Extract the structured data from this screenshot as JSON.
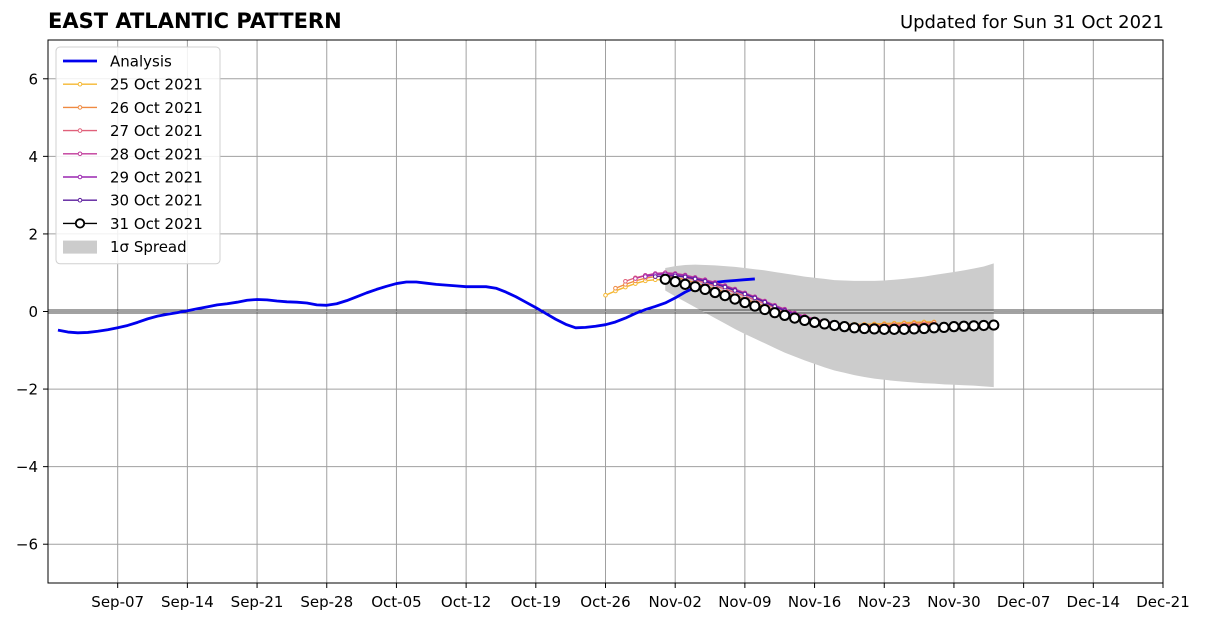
{
  "title": "EAST ATLANTIC PATTERN",
  "updated": "Updated for Sun 31 Oct 2021",
  "chart_data": {
    "type": "line",
    "title": "EAST ATLANTIC PATTERN",
    "x_start": "2021-09-01",
    "xlim": [
      "2021-08-31",
      "2021-12-21"
    ],
    "ylim": [
      -7,
      7
    ],
    "yticks": [
      -6,
      -4,
      -2,
      0,
      2,
      4,
      6
    ],
    "ytick_labels": [
      "−6",
      "−4",
      "−2",
      "0",
      "2",
      "4",
      "6"
    ],
    "xticks": [
      "2021-09-07",
      "2021-09-14",
      "2021-09-21",
      "2021-09-28",
      "2021-10-05",
      "2021-10-12",
      "2021-10-19",
      "2021-10-26",
      "2021-11-02",
      "2021-11-09",
      "2021-11-16",
      "2021-11-23",
      "2021-11-30",
      "2021-12-07",
      "2021-12-14",
      "2021-12-21"
    ],
    "xtick_labels": [
      "Sep-07",
      "Sep-14",
      "Sep-21",
      "Sep-28",
      "Oct-05",
      "Oct-12",
      "Oct-19",
      "Oct-26",
      "Nov-02",
      "Nov-09",
      "Nov-16",
      "Nov-23",
      "Nov-30",
      "Dec-07",
      "Dec-14",
      "Dec-21"
    ],
    "grid": true,
    "legend_position": "top-left",
    "zero_line": true,
    "analysis": {
      "name": "Analysis",
      "color": "#0000ee",
      "start": "2021-09-01",
      "values": [
        -0.48,
        -0.53,
        -0.55,
        -0.54,
        -0.51,
        -0.47,
        -0.42,
        -0.36,
        -0.28,
        -0.19,
        -0.12,
        -0.07,
        -0.03,
        0.02,
        0.07,
        0.12,
        0.17,
        0.2,
        0.24,
        0.29,
        0.31,
        0.3,
        0.27,
        0.25,
        0.24,
        0.22,
        0.17,
        0.16,
        0.2,
        0.28,
        0.38,
        0.48,
        0.57,
        0.65,
        0.72,
        0.76,
        0.76,
        0.73,
        0.7,
        0.68,
        0.66,
        0.64,
        0.64,
        0.64,
        0.6,
        0.5,
        0.38,
        0.24,
        0.1,
        -0.05,
        -0.2,
        -0.33,
        -0.42,
        -0.41,
        -0.38,
        -0.34,
        -0.27,
        -0.17,
        -0.05,
        0.05,
        0.13,
        0.22,
        0.35,
        0.5,
        0.62,
        0.7,
        0.75,
        0.78,
        0.8,
        0.82,
        0.84
      ]
    },
    "forecasts": [
      {
        "name": "25 Oct 2021",
        "color": "#f5b731",
        "start": "2021-10-26",
        "values": [
          0.42,
          0.53,
          0.63,
          0.72,
          0.79,
          0.82,
          0.82,
          0.78,
          0.71,
          0.63,
          0.55,
          0.47,
          0.39,
          0.31,
          0.22,
          0.13,
          0.04,
          -0.04,
          -0.11,
          -0.17,
          -0.22,
          -0.26,
          -0.29,
          -0.31,
          -0.32,
          -0.33,
          -0.33,
          -0.32,
          -0.31,
          -0.3,
          -0.29,
          -0.28,
          -0.27,
          -0.27
        ]
      },
      {
        "name": "26 Oct 2021",
        "color": "#ef8a42",
        "start": "2021-10-27",
        "values": [
          0.6,
          0.7,
          0.79,
          0.86,
          0.9,
          0.91,
          0.88,
          0.82,
          0.74,
          0.66,
          0.58,
          0.5,
          0.41,
          0.32,
          0.23,
          0.13,
          0.04,
          -0.04,
          -0.12,
          -0.18,
          -0.23,
          -0.27,
          -0.3,
          -0.32,
          -0.34,
          -0.34,
          -0.34,
          -0.33,
          -0.32,
          -0.31,
          -0.3,
          -0.29,
          -0.28
        ]
      },
      {
        "name": "27 Oct 2021",
        "color": "#e0607a",
        "start": "2021-10-28",
        "values": [
          0.78,
          0.87,
          0.93,
          0.96,
          0.96,
          0.93,
          0.88,
          0.81,
          0.74,
          0.66,
          0.58,
          0.49,
          0.4,
          0.3,
          0.2,
          0.1,
          0.01,
          -0.07,
          -0.15,
          -0.21,
          -0.26,
          -0.3,
          -0.33,
          -0.35,
          -0.36,
          -0.37,
          -0.37,
          -0.36,
          -0.35,
          -0.34,
          -0.33,
          -0.32
        ]
      },
      {
        "name": "28 Oct 2021",
        "color": "#c0399a",
        "start": "2021-10-29",
        "values": [
          0.85,
          0.93,
          0.98,
          1.0,
          0.98,
          0.94,
          0.88,
          0.82,
          0.75,
          0.67,
          0.58,
          0.48,
          0.38,
          0.27,
          0.16,
          0.06,
          -0.04,
          -0.12,
          -0.19,
          -0.25,
          -0.3,
          -0.34,
          -0.37,
          -0.39,
          -0.4,
          -0.4,
          -0.4,
          -0.39,
          -0.38,
          -0.37,
          -0.36
        ]
      },
      {
        "name": "29 Oct 2021",
        "color": "#9a27b0",
        "start": "2021-10-30",
        "values": [
          0.9,
          0.95,
          0.97,
          0.96,
          0.92,
          0.86,
          0.8,
          0.73,
          0.65,
          0.56,
          0.46,
          0.36,
          0.25,
          0.14,
          0.04,
          -0.06,
          -0.15,
          -0.22,
          -0.28,
          -0.33,
          -0.37,
          -0.4,
          -0.42,
          -0.43,
          -0.43,
          -0.43,
          -0.42,
          -0.41,
          -0.4,
          -0.39
        ]
      },
      {
        "name": "30 Oct 2021",
        "color": "#5a1b9c",
        "start": "2021-10-31",
        "values": [
          0.9,
          0.92,
          0.92,
          0.89,
          0.84,
          0.78,
          0.71,
          0.63,
          0.54,
          0.45,
          0.35,
          0.24,
          0.13,
          0.02,
          -0.08,
          -0.17,
          -0.24,
          -0.3,
          -0.35,
          -0.39,
          -0.42,
          -0.44,
          -0.45,
          -0.45,
          -0.45,
          -0.44,
          -0.43,
          -0.42,
          -0.41
        ]
      },
      {
        "name": "31 Oct 2021",
        "color": "#000000",
        "marker": "open-circle",
        "start": "2021-11-01",
        "values": [
          0.83,
          0.77,
          0.7,
          0.64,
          0.57,
          0.49,
          0.41,
          0.32,
          0.23,
          0.14,
          0.05,
          -0.03,
          -0.1,
          -0.17,
          -0.23,
          -0.28,
          -0.32,
          -0.36,
          -0.39,
          -0.42,
          -0.44,
          -0.45,
          -0.46,
          -0.46,
          -0.46,
          -0.45,
          -0.44,
          -0.42,
          -0.41,
          -0.39,
          -0.38,
          -0.37,
          -0.36,
          -0.35
        ]
      }
    ],
    "spread": {
      "name": "1σ Spread",
      "color": "#cccccc",
      "start": "2021-11-01",
      "upper": [
        1.12,
        1.17,
        1.2,
        1.21,
        1.2,
        1.19,
        1.17,
        1.15,
        1.12,
        1.09,
        1.06,
        1.02,
        0.98,
        0.94,
        0.9,
        0.87,
        0.84,
        0.81,
        0.8,
        0.79,
        0.79,
        0.79,
        0.8,
        0.82,
        0.84,
        0.87,
        0.9,
        0.94,
        0.98,
        1.02,
        1.06,
        1.11,
        1.16,
        1.24
      ],
      "lower": [
        0.54,
        0.39,
        0.25,
        0.11,
        -0.03,
        -0.17,
        -0.31,
        -0.45,
        -0.58,
        -0.7,
        -0.82,
        -0.94,
        -1.06,
        -1.16,
        -1.26,
        -1.35,
        -1.44,
        -1.52,
        -1.58,
        -1.64,
        -1.69,
        -1.73,
        -1.76,
        -1.79,
        -1.81,
        -1.83,
        -1.85,
        -1.86,
        -1.88,
        -1.89,
        -1.9,
        -1.91,
        -1.93,
        -1.95
      ]
    }
  }
}
